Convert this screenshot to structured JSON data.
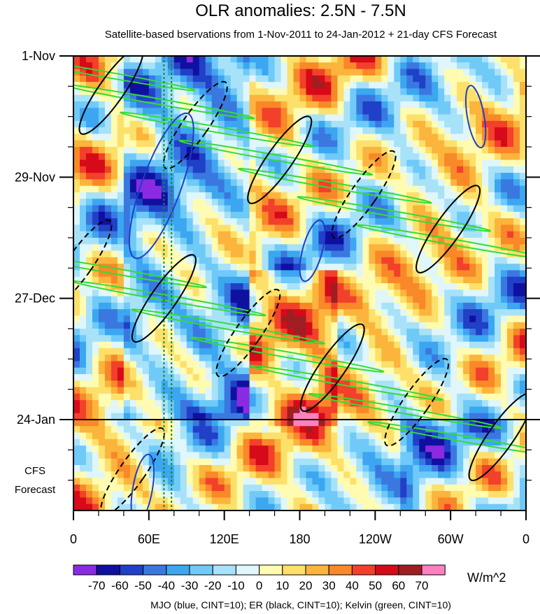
{
  "chart_data": {
    "type": "heatmap",
    "title": "OLR anomalies: 2.5N - 7.5N",
    "subtitle": "Satellite-based bservations from 1-Nov-2011 to 24-Jan-2012 + 21-day CFS Forecast",
    "x_tick_labels": [
      "0",
      "60E",
      "120E",
      "180",
      "120W",
      "60W",
      "0"
    ],
    "x_ticks_deg": [
      0,
      60,
      120,
      180,
      240,
      300,
      360
    ],
    "y_tick_labels": [
      "1-Nov",
      "29-Nov",
      "27-Dec",
      "24-Jan"
    ],
    "y_ticks_day": [
      0,
      28,
      56,
      84
    ],
    "y_range_days": [
      0,
      105
    ],
    "forecast_start_day": 84,
    "forecast_label": [
      "CFS",
      "Forecast"
    ],
    "vertical_dashed_lines_deg": [
      72,
      78
    ],
    "colorbar": {
      "labels": [
        "-70",
        "-60",
        "-50",
        "-40",
        "-30",
        "-20",
        "-10",
        "0",
        "10",
        "20",
        "30",
        "40",
        "50",
        "60",
        "70"
      ],
      "colors": [
        "#8a2be2",
        "#1010a0",
        "#2040c8",
        "#3a78e0",
        "#3ca6f0",
        "#6fcaf8",
        "#a8e2f8",
        "#dff6fb",
        "#fffbb0",
        "#fce06a",
        "#fbb43c",
        "#f88828",
        "#f2402a",
        "#d60a18",
        "#a01e22",
        "#ff80c0"
      ],
      "units": "W/m^2"
    },
    "contours": {
      "MJO": {
        "color": "#1f3ec8"
      },
      "ER": {
        "color": "#000000"
      },
      "Kelvin": {
        "color": "#33dd33"
      }
    }
  },
  "footer": "MJO (blue, CINT=10); ER (black, CINT=10); Kelvin (green, CINT=10)"
}
